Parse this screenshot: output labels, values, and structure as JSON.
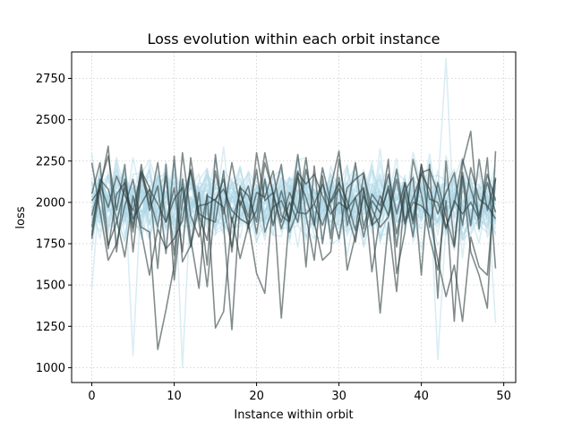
{
  "chart_data": {
    "type": "line",
    "title": "Loss evolution within each orbit instance",
    "xlabel": "Instance within orbit",
    "ylabel": "loss",
    "xlim": [
      -2.45,
      51.45
    ],
    "ylim": [
      910,
      2910
    ],
    "x_ticks": [
      0,
      10,
      20,
      30,
      40,
      50
    ],
    "y_ticks": [
      1000,
      1250,
      1500,
      1750,
      2000,
      2250,
      2500,
      2750
    ],
    "grid": true,
    "x": [
      0,
      1,
      2,
      3,
      4,
      5,
      6,
      7,
      8,
      9,
      10,
      11,
      12,
      13,
      14,
      15,
      16,
      17,
      18,
      19,
      20,
      21,
      22,
      23,
      24,
      25,
      26,
      27,
      28,
      29,
      30,
      31,
      32,
      33,
      34,
      35,
      36,
      37,
      38,
      39,
      40,
      41,
      42,
      43,
      44,
      45,
      46,
      47,
      48,
      49
    ],
    "background_series": {
      "color": "#add8e6",
      "count": 40,
      "approx_mean": 2000,
      "approx_spread": 200,
      "notable_extremes": [
        {
          "x": 43,
          "y": 2870
        },
        {
          "x": 42,
          "y": 1050
        },
        {
          "x": 11,
          "y": 1000
        },
        {
          "x": 5,
          "y": 1075
        },
        {
          "x": 0,
          "y": 1480
        },
        {
          "x": 49,
          "y": 1270
        }
      ]
    },
    "highlight_series_color": "#2f3f3f",
    "series": [
      {
        "values": [
          2240,
          1950,
          1650,
          1750,
          1980,
          2140,
          1850,
          1820,
          1110,
          1350,
          1620,
          2140,
          1780,
          1480,
          2050,
          1240,
          1340,
          1910,
          1660,
          1860,
          1950,
          2300,
          2050,
          1880,
          2060,
          1940,
          1930,
          1990,
          1860,
          2010,
          2120,
          2010,
          1830,
          2170,
          1960,
          1850,
          1910,
          2140,
          1870,
          2000,
          1980,
          1920,
          1650,
          1430,
          1620,
          1280,
          1790,
          1610,
          1560,
          2150
        ]
      },
      {
        "values": [
          1800,
          2140,
          2080,
          1900,
          1670,
          2040,
          1820,
          1560,
          1840,
          1720,
          1780,
          1890,
          2200,
          1920,
          1770,
          2190,
          1930,
          2240,
          1980,
          2100,
          1810,
          2140,
          1860,
          2070,
          1890,
          2290,
          1920,
          1650,
          2160,
          1780,
          2260,
          1940,
          1760,
          2080,
          1860,
          1910,
          2100,
          1810,
          2060,
          1790,
          2230,
          1850,
          2120,
          1910,
          1730,
          2180,
          1860,
          2260,
          1950,
          2140
        ]
      },
      {
        "values": [
          2010,
          2080,
          1720,
          2050,
          2120,
          1900,
          1990,
          2080,
          1990,
          1880,
          2020,
          2090,
          1730,
          1980,
          1990,
          2020,
          2080,
          1950,
          1900,
          1870,
          2060,
          2030,
          2190,
          1920,
          1880,
          2180,
          2110,
          2170,
          2040,
          1930,
          2000,
          1960,
          2030,
          1790,
          2010,
          1940,
          2080,
          1730,
          2120,
          1890,
          2230,
          2020,
          2000,
          1840,
          2010,
          1930,
          2000,
          1900,
          2120,
          1940
        ]
      },
      {
        "values": [
          2050,
          2240,
          1740,
          1880,
          2090,
          1820,
          2180,
          2030,
          1850,
          2160,
          1680,
          2300,
          1920,
          1790,
          2040,
          2010,
          2140,
          1880,
          2060,
          1910,
          2200,
          1820,
          1970,
          2010,
          1890,
          2150,
          2030,
          1860,
          2210,
          2000,
          2080,
          1950,
          2240,
          1840,
          2050,
          1980,
          2170,
          1930,
          2120,
          1870,
          2180,
          2200,
          2060,
          1850,
          1990,
          2260,
          2080,
          1920,
          2170,
          2010
        ]
      },
      {
        "values": [
          1850,
          2110,
          1970,
          2160,
          2040,
          1950,
          2190,
          2090,
          1600,
          2230,
          1530,
          2010,
          2190,
          1890,
          1490,
          2010,
          1970,
          1730,
          2090,
          2040,
          1880,
          2240,
          2060,
          1840,
          2000,
          1880,
          2200,
          1990,
          2110,
          1970,
          1780,
          2090,
          2140,
          2180,
          1870,
          2040,
          1920,
          2200,
          1890,
          2030,
          2170,
          2080,
          1930,
          2060,
          2180,
          1860,
          2210,
          2020,
          1980,
          1900
        ]
      },
      {
        "values": [
          1920,
          2110,
          2280,
          1950,
          2230,
          1700,
          2170,
          1980,
          2240,
          1880,
          2090,
          1700,
          2270,
          1930,
          1900,
          1880,
          2190,
          1700,
          2100,
          1840,
          2300,
          2010,
          2060,
          1300,
          1930,
          2190,
          1610,
          2220,
          1750,
          2090,
          2310,
          1860,
          2030,
          2090,
          1580,
          1920,
          2260,
          1570,
          1820,
          2260,
          2050,
          1790,
          1590,
          2010,
          1280,
          2160,
          1700,
          1560,
          1360,
          2310
        ]
      },
      {
        "values": [
          1780,
          2080,
          2340,
          1700,
          2140,
          1850,
          2230,
          1950,
          2100,
          1690,
          2280,
          1640,
          1740,
          2060,
          1620,
          2290,
          1860,
          1230,
          2010,
          1880,
          1570,
          1450,
          2020,
          2230,
          1820,
          1950,
          2270,
          1880,
          1650,
          1700,
          2150,
          1590,
          1800,
          2040,
          1910,
          1330,
          1880,
          1460,
          2070,
          2150,
          1560,
          2230,
          1420,
          2250,
          1740,
          2230,
          2430,
          1840,
          2270,
          1600
        ]
      }
    ]
  }
}
